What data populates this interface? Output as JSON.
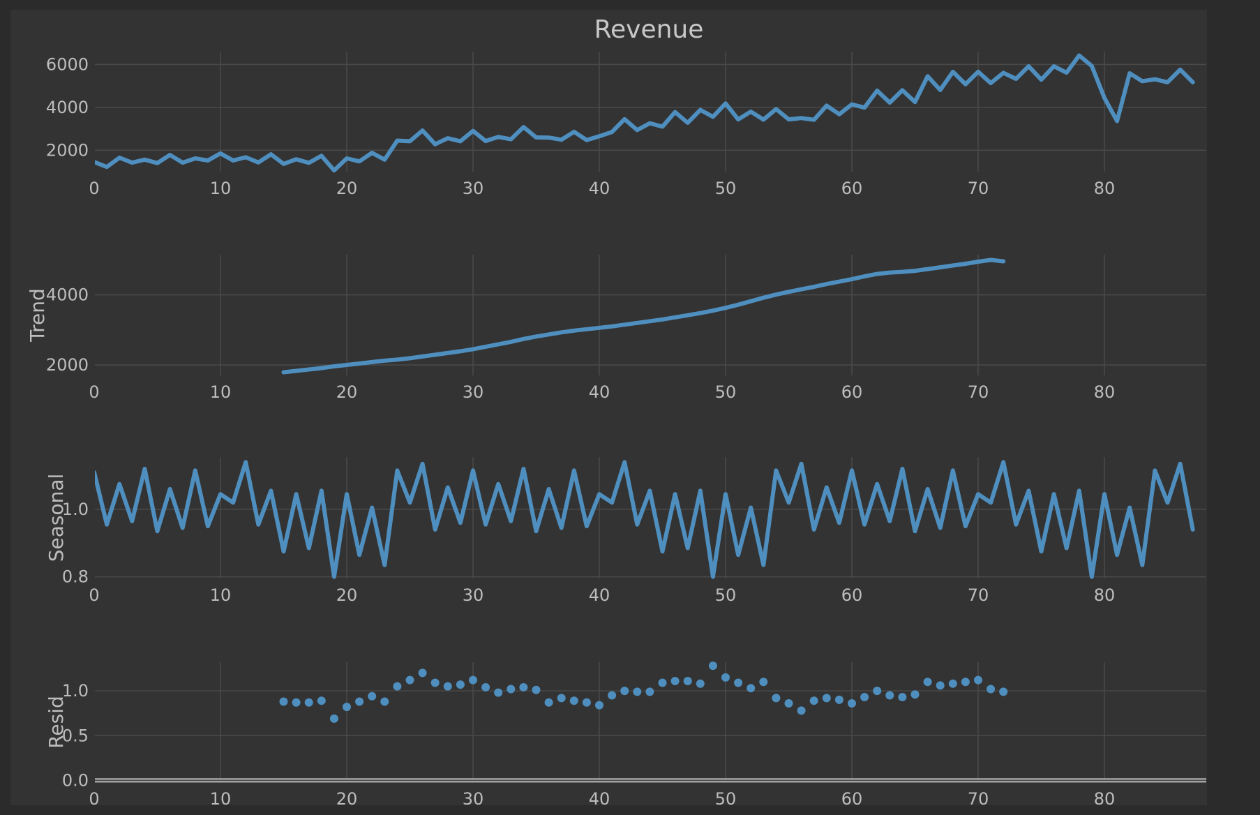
{
  "figure": {
    "background": "#333333",
    "page_background": "#2b2b2b",
    "line_color": "#4f8fbf"
  },
  "chart_data": [
    {
      "type": "line",
      "title": "Revenue",
      "ylabel": "",
      "xlabel": "",
      "x_ticks": [
        0,
        10,
        20,
        30,
        40,
        50,
        60,
        70,
        80
      ],
      "y_ticks": [
        2000,
        4000,
        6000
      ],
      "xlim": [
        0,
        87
      ],
      "ylim": [
        1000,
        6600
      ],
      "grid": true,
      "x_start": 0,
      "values": [
        1450,
        1220,
        1650,
        1420,
        1560,
        1400,
        1780,
        1420,
        1620,
        1520,
        1850,
        1520,
        1670,
        1430,
        1810,
        1360,
        1580,
        1410,
        1740,
        1060,
        1620,
        1480,
        1880,
        1560,
        2450,
        2420,
        2920,
        2280,
        2560,
        2420,
        2900,
        2430,
        2620,
        2510,
        3080,
        2600,
        2590,
        2490,
        2860,
        2470,
        2650,
        2850,
        3450,
        2940,
        3260,
        3100,
        3780,
        3280,
        3880,
        3560,
        4180,
        3440,
        3800,
        3430,
        3920,
        3440,
        3500,
        3420,
        4080,
        3680,
        4140,
        3990,
        4780,
        4220,
        4800,
        4250,
        5450,
        4810,
        5660,
        5080,
        5660,
        5130,
        5610,
        5330,
        5920,
        5290,
        5920,
        5620,
        6420,
        5930,
        4440,
        3360,
        5590,
        5220,
        5310,
        5170,
        5760,
        5170
      ]
    },
    {
      "type": "line",
      "title": "",
      "ylabel": "Trend",
      "xlabel": "",
      "x_ticks": [
        0,
        10,
        20,
        30,
        40,
        50,
        60,
        70,
        80
      ],
      "y_ticks": [
        2000,
        4000
      ],
      "xlim": [
        0,
        87
      ],
      "ylim": [
        1700,
        5150
      ],
      "grid": true,
      "x_start": 15,
      "values": [
        1790,
        1830,
        1870,
        1910,
        1960,
        2000,
        2040,
        2080,
        2120,
        2150,
        2190,
        2240,
        2290,
        2340,
        2390,
        2450,
        2520,
        2590,
        2660,
        2740,
        2810,
        2870,
        2930,
        2980,
        3020,
        3060,
        3100,
        3150,
        3200,
        3250,
        3300,
        3360,
        3420,
        3480,
        3550,
        3630,
        3720,
        3820,
        3920,
        4010,
        4090,
        4160,
        4230,
        4310,
        4380,
        4450,
        4530,
        4600,
        4640,
        4660,
        4690,
        4740,
        4790,
        4840,
        4890,
        4950,
        5000,
        4960
      ]
    },
    {
      "type": "line",
      "title": "",
      "ylabel": "Seasonal",
      "xlabel": "",
      "x_ticks": [
        0,
        10,
        20,
        30,
        40,
        50,
        60,
        70,
        80
      ],
      "y_ticks": [
        0.8,
        1.0
      ],
      "y_tick_labels": [
        "0.8",
        "1.0"
      ],
      "xlim": [
        0,
        87
      ],
      "ylim": [
        0.795,
        1.155
      ],
      "grid": true,
      "x_start": 0,
      "values": [
        1.11,
        0.955,
        1.075,
        0.965,
        1.12,
        0.935,
        1.06,
        0.945,
        1.115,
        0.95,
        1.045,
        1.02,
        1.14,
        0.955,
        1.055,
        0.875,
        1.045,
        0.885,
        1.055,
        0.8,
        1.045,
        0.865,
        1.005,
        0.835,
        1.115,
        1.02,
        1.135,
        0.94,
        1.065,
        0.96,
        1.115,
        0.955,
        1.075,
        0.965,
        1.12,
        0.935,
        1.06,
        0.945,
        1.115,
        0.95,
        1.045,
        1.02,
        1.14,
        0.955,
        1.055,
        0.875,
        1.045,
        0.885,
        1.055,
        0.8,
        1.045,
        0.865,
        1.005,
        0.835,
        1.115,
        1.02,
        1.135,
        0.94,
        1.065,
        0.96,
        1.115,
        0.955,
        1.075,
        0.965,
        1.12,
        0.935,
        1.06,
        0.945,
        1.115,
        0.95,
        1.045,
        1.02,
        1.14,
        0.955,
        1.055,
        0.875,
        1.045,
        0.885,
        1.055,
        0.8,
        1.045,
        0.865,
        1.005,
        0.835,
        1.115,
        1.02,
        1.135,
        0.94
      ]
    },
    {
      "type": "scatter",
      "title": "",
      "ylabel": "Resid",
      "xlabel": "",
      "x_ticks": [
        0,
        10,
        20,
        30,
        40,
        50,
        60,
        70,
        80
      ],
      "y_ticks": [
        0.0,
        0.5,
        1.0
      ],
      "y_tick_labels": [
        "0.0",
        "0.5",
        "1.0"
      ],
      "xlim": [
        0,
        87
      ],
      "ylim": [
        -0.02,
        1.32
      ],
      "grid": true,
      "baseline": 0,
      "x_start": 15,
      "values": [
        0.88,
        0.87,
        0.87,
        0.89,
        0.69,
        0.82,
        0.88,
        0.94,
        0.88,
        1.05,
        1.12,
        1.2,
        1.09,
        1.05,
        1.07,
        1.12,
        1.04,
        0.98,
        1.02,
        1.04,
        1.01,
        0.87,
        0.92,
        0.89,
        0.87,
        0.84,
        0.95,
        1.0,
        0.99,
        0.99,
        1.09,
        1.11,
        1.11,
        1.08,
        1.28,
        1.15,
        1.09,
        1.03,
        1.1,
        0.92,
        0.86,
        0.78,
        0.89,
        0.92,
        0.9,
        0.86,
        0.93,
        1.0,
        0.95,
        0.93,
        0.96,
        1.1,
        1.06,
        1.08,
        1.1,
        1.12,
        1.02,
        0.99
      ]
    }
  ]
}
